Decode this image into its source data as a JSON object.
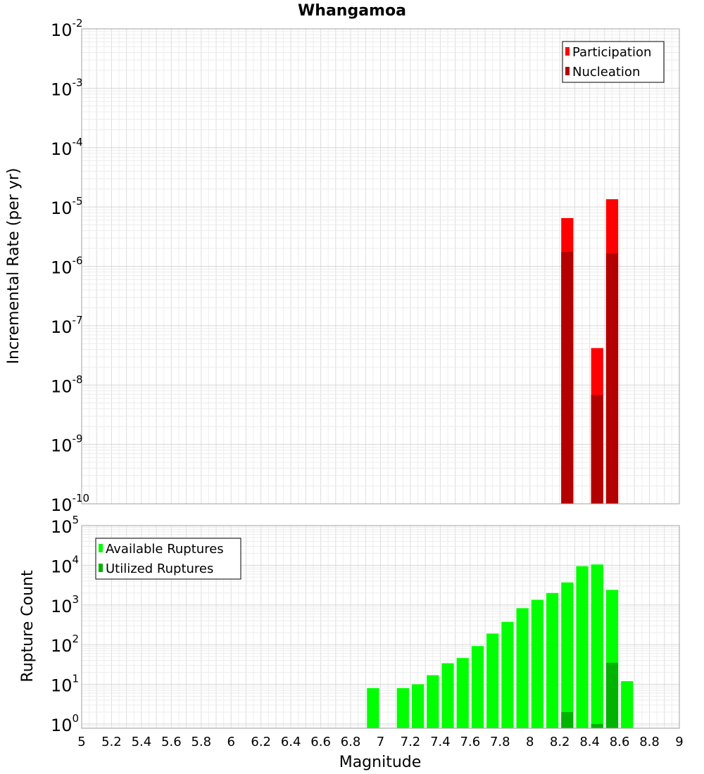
{
  "chart_data": {
    "title": "Whangamoa",
    "xlabel": "Magnitude",
    "x_ticks": [
      "5",
      "5.2",
      "5.4",
      "5.6",
      "5.8",
      "6",
      "6.2",
      "6.4",
      "6.6",
      "6.8",
      "7",
      "7.2",
      "7.4",
      "7.6",
      "7.8",
      "8",
      "8.2",
      "8.4",
      "8.6",
      "8.8",
      "9"
    ],
    "xlim": [
      5,
      9
    ],
    "bin_width": 0.1,
    "panels": [
      {
        "type": "bar",
        "ylabel": "Incremental Rate (per yr)",
        "yscale": "log",
        "ylim": [
          1e-10,
          0.01
        ],
        "y_tick_exponents": [
          -10,
          -9,
          -8,
          -7,
          -6,
          -5,
          -4,
          -3,
          -2
        ],
        "legend_position": "top-right",
        "grid": true,
        "series": [
          {
            "name": "Participation",
            "color": "#ff0000",
            "points": [
              {
                "x": 8.25,
                "y": 6.5e-06
              },
              {
                "x": 8.45,
                "y": 4.2e-08
              },
              {
                "x": 8.55,
                "y": 1.35e-05
              }
            ]
          },
          {
            "name": "Nucleation",
            "color": "#b30000",
            "points": [
              {
                "x": 8.25,
                "y": 1.75e-06
              },
              {
                "x": 8.45,
                "y": 6.8e-09
              },
              {
                "x": 8.55,
                "y": 1.65e-06
              }
            ]
          }
        ]
      },
      {
        "type": "bar",
        "ylabel": "Rupture Count",
        "yscale": "log",
        "ylim": [
          0.78,
          100000.0
        ],
        "y_tick_exponents": [
          0,
          1,
          2,
          3,
          4,
          5
        ],
        "legend_position": "top-left",
        "grid": true,
        "series": [
          {
            "name": "Available Ruptures",
            "color": "#00ff00",
            "points": [
              {
                "x": 6.95,
                "y": 8
              },
              {
                "x": 7.15,
                "y": 8
              },
              {
                "x": 7.25,
                "y": 10
              },
              {
                "x": 7.35,
                "y": 17
              },
              {
                "x": 7.45,
                "y": 34
              },
              {
                "x": 7.55,
                "y": 46
              },
              {
                "x": 7.65,
                "y": 92
              },
              {
                "x": 7.75,
                "y": 190
              },
              {
                "x": 7.85,
                "y": 375
              },
              {
                "x": 7.95,
                "y": 830
              },
              {
                "x": 8.05,
                "y": 1350
              },
              {
                "x": 8.15,
                "y": 2000
              },
              {
                "x": 8.25,
                "y": 3700
              },
              {
                "x": 8.35,
                "y": 9500
              },
              {
                "x": 8.45,
                "y": 10500
              },
              {
                "x": 8.55,
                "y": 2400
              },
              {
                "x": 8.65,
                "y": 12
              }
            ]
          },
          {
            "name": "Utilized Ruptures",
            "color": "#00b300",
            "points": [
              {
                "x": 8.25,
                "y": 2
              },
              {
                "x": 8.45,
                "y": 1
              },
              {
                "x": 8.55,
                "y": 35
              }
            ]
          }
        ]
      }
    ]
  }
}
